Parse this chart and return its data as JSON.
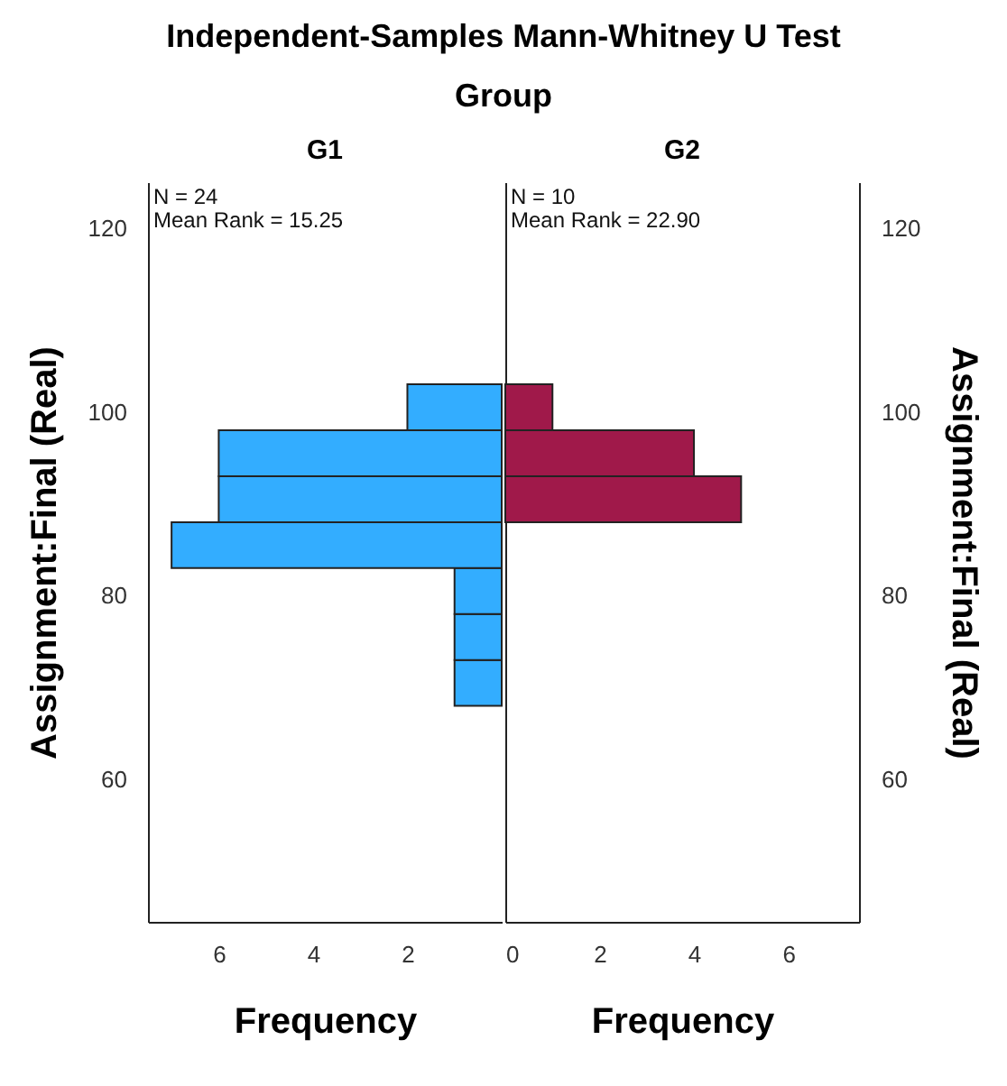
{
  "chart_data": [
    {
      "type": "histogram",
      "title": "Independent-Samples Mann-Whitney U Test",
      "subtitle": "Group",
      "xlabel": "Frequency",
      "ylabel": "Assignment:Final (Real)",
      "orientation": "horizontal",
      "color": "#33adff",
      "bins": [
        68,
        73,
        78,
        83,
        88,
        93,
        98,
        103
      ],
      "values": [
        1,
        1,
        1,
        7,
        6,
        6,
        2
      ],
      "xlim": [
        7.5,
        0
      ],
      "xticks": [
        2,
        4,
        6
      ],
      "ylim": [
        44.5,
        125
      ],
      "yticks": [
        60,
        80,
        100,
        120
      ],
      "grid": false,
      "annotations": [
        "G1",
        "N = 24",
        "Mean Rank = 15.25"
      ]
    },
    {
      "type": "histogram",
      "xlabel": "Frequency",
      "ylabel": "Assignment:Final (Real)",
      "orientation": "horizontal",
      "color": "#a0194a",
      "bins": [
        88,
        93,
        98,
        103
      ],
      "values": [
        5,
        4,
        1
      ],
      "xlim": [
        0,
        7.5
      ],
      "xticks": [
        0,
        2,
        4,
        6
      ],
      "ylim": [
        44.5,
        125
      ],
      "yticks": [
        60,
        80,
        100,
        120
      ],
      "grid": false,
      "annotations": [
        "G2",
        "N = 10",
        "Mean Rank = 22.90"
      ]
    }
  ]
}
